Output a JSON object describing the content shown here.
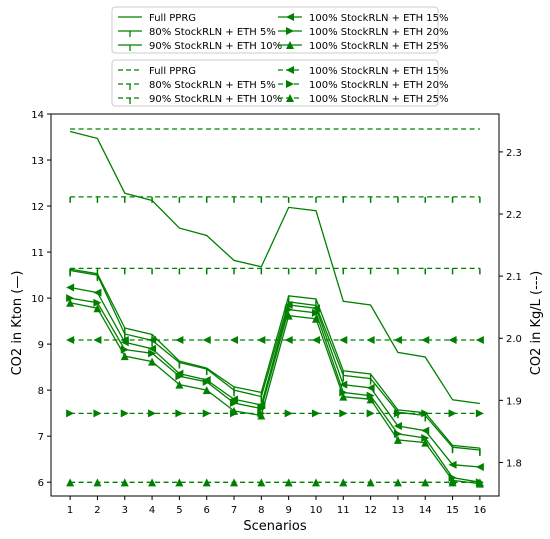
{
  "chart_data": {
    "type": "line",
    "xlabel": "Scenarios",
    "ylabel_left": "CO2 in Kton (—)",
    "ylabel_right": "CO2 in Kg/L (---)",
    "x": [
      1,
      2,
      3,
      4,
      5,
      6,
      7,
      8,
      9,
      10,
      11,
      12,
      13,
      14,
      15,
      16
    ],
    "x_ticks": [
      "1",
      "2",
      "3",
      "4",
      "5",
      "6",
      "7",
      "8",
      "9",
      "10",
      "11",
      "12",
      "13",
      "14",
      "15",
      "16"
    ],
    "ylim_left": [
      5.7,
      14.0
    ],
    "ylim_right": [
      1.746,
      2.361
    ],
    "y_ticks_left": [
      "6",
      "7",
      "8",
      "9",
      "10",
      "11",
      "12",
      "13",
      "14"
    ],
    "y_ticks_right": [
      "1.8",
      "1.9",
      "2.0",
      "2.1",
      "2.2",
      "2.3"
    ],
    "line_color": "#008000",
    "grid": false,
    "legend_placement": "top-center",
    "series_left": [
      {
        "name": "Full PPRG",
        "marker": "none",
        "values": [
          13.62,
          13.47,
          12.28,
          12.12,
          11.52,
          11.36,
          10.82,
          10.68,
          11.97,
          11.9,
          9.93,
          9.85,
          8.82,
          8.72,
          7.79,
          7.71
        ]
      },
      {
        "name": "80% StockRLN + ETH 5%",
        "marker": "tick",
        "values": [
          10.63,
          10.53,
          9.35,
          9.21,
          8.63,
          8.48,
          8.07,
          7.95,
          10.05,
          9.98,
          8.42,
          8.35,
          7.57,
          7.51,
          6.8,
          6.74
        ]
      },
      {
        "name": "90% StockRLN + ETH 10%",
        "marker": "tick",
        "values": [
          10.6,
          10.5,
          9.22,
          9.08,
          8.6,
          8.46,
          8.0,
          7.86,
          9.92,
          9.84,
          8.32,
          8.25,
          7.52,
          7.45,
          6.76,
          6.7
        ]
      },
      {
        "name": "100% StockRLN + ETH 15%",
        "marker": "tri-left",
        "values": [
          10.23,
          10.12,
          9.04,
          8.9,
          8.36,
          8.22,
          7.8,
          7.68,
          9.85,
          9.78,
          8.12,
          8.05,
          7.22,
          7.12,
          6.38,
          6.33
        ]
      },
      {
        "name": "100% StockRLN + ETH 20%",
        "marker": "tri-right",
        "values": [
          10.0,
          9.9,
          8.88,
          8.8,
          8.3,
          8.18,
          7.72,
          7.6,
          9.75,
          9.68,
          7.95,
          7.88,
          7.05,
          6.96,
          6.1,
          6.0
        ]
      },
      {
        "name": "100% StockRLN + ETH 25%",
        "marker": "tri-up",
        "values": [
          9.9,
          9.78,
          8.74,
          8.62,
          8.12,
          8.0,
          7.55,
          7.45,
          9.62,
          9.55,
          7.86,
          7.8,
          6.92,
          6.86,
          6.04,
          5.97
        ]
      }
    ],
    "series_right": [
      {
        "name": "Full PPRG",
        "marker": "none",
        "values": [
          2.3369,
          2.3369,
          2.3369,
          2.3369,
          2.3369,
          2.3369,
          2.3369,
          2.3369,
          2.3369,
          2.3369,
          2.3369,
          2.3369,
          2.3369,
          2.3369,
          2.3369,
          2.3369
        ]
      },
      {
        "name": "80% StockRLN + ETH 5%",
        "marker": "tick",
        "values": [
          2.2276,
          2.2276,
          2.2276,
          2.2276,
          2.2276,
          2.2276,
          2.2276,
          2.2276,
          2.2276,
          2.2276,
          2.2276,
          2.2276,
          2.2276,
          2.2276,
          2.2276,
          2.2276
        ]
      },
      {
        "name": "90% StockRLN + ETH 10%",
        "marker": "tick",
        "values": [
          2.1125,
          2.1125,
          2.1125,
          2.1125,
          2.1125,
          2.1125,
          2.1125,
          2.1125,
          2.1125,
          2.1125,
          2.1125,
          2.1125,
          2.1125,
          2.1125,
          2.1125,
          2.1125
        ]
      },
      {
        "name": "100% StockRLN + ETH 15%",
        "marker": "tri-left",
        "values": [
          1.9971,
          1.9971,
          1.9971,
          1.9971,
          1.9971,
          1.9971,
          1.9971,
          1.9971,
          1.9971,
          1.9971,
          1.9971,
          1.9971,
          1.9971,
          1.9971,
          1.9971,
          1.9971
        ]
      },
      {
        "name": "100% StockRLN + ETH 20%",
        "marker": "tri-right",
        "values": [
          1.879,
          1.879,
          1.879,
          1.879,
          1.879,
          1.879,
          1.879,
          1.879,
          1.879,
          1.879,
          1.879,
          1.879,
          1.879,
          1.879,
          1.879,
          1.879
        ]
      },
      {
        "name": "100% StockRLN + ETH 25%",
        "marker": "tri-up",
        "values": [
          1.768,
          1.768,
          1.768,
          1.768,
          1.768,
          1.768,
          1.768,
          1.768,
          1.768,
          1.768,
          1.768,
          1.768,
          1.768,
          1.768,
          1.768,
          1.768
        ]
      }
    ],
    "legend_solid": [
      "Full PPRG",
      "80% StockRLN + ETH 5%",
      "90% StockRLN + ETH 10%",
      "100% StockRLN + ETH 15%",
      "100% StockRLN + ETH 20%",
      "100% StockRLN + ETH 25%"
    ],
    "legend_dashed": [
      "Full PPRG",
      "80% StockRLN + ETH 5%",
      "90% StockRLN + ETH 10%",
      "100% StockRLN + ETH 15%",
      "100% StockRLN + ETH 20%",
      "100% StockRLN + ETH 25%"
    ]
  }
}
